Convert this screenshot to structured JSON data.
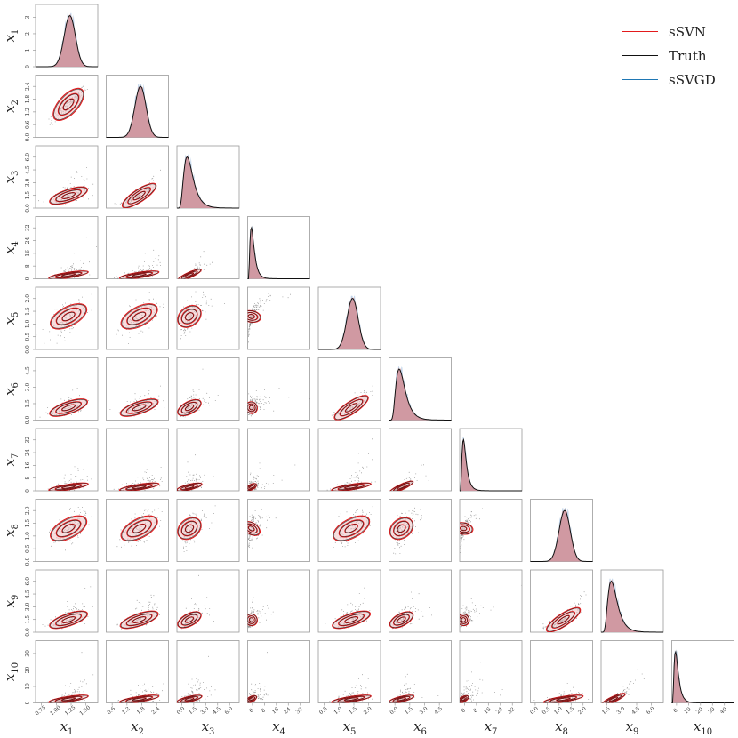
{
  "chart_data": {
    "type": "corner",
    "variables": [
      "x_1",
      "x_2",
      "x_3",
      "x_4",
      "x_5",
      "x_6",
      "x_7",
      "x_8",
      "x_9",
      "x_10"
    ],
    "axis_labels": [
      {
        "base": "x",
        "sub": "1"
      },
      {
        "base": "x",
        "sub": "2"
      },
      {
        "base": "x",
        "sub": "3"
      },
      {
        "base": "x",
        "sub": "4"
      },
      {
        "base": "x",
        "sub": "5"
      },
      {
        "base": "x",
        "sub": "6"
      },
      {
        "base": "x",
        "sub": "7"
      },
      {
        "base": "x",
        "sub": "8"
      },
      {
        "base": "x",
        "sub": "9"
      },
      {
        "base": "x",
        "sub": "10"
      }
    ],
    "ranges": [
      [
        0.55,
        1.55
      ],
      [
        0,
        2.4
      ],
      [
        0,
        6.0
      ],
      [
        0,
        40
      ],
      [
        0,
        2.7
      ],
      [
        0,
        6.0
      ],
      [
        0,
        33
      ],
      [
        0,
        2.7
      ],
      [
        0,
        6.0
      ],
      [
        0,
        40
      ]
    ],
    "y_ticks": [
      [
        "0",
        "1",
        "2",
        "3"
      ],
      [
        "0.0",
        "0.6",
        "1.2",
        "1.8",
        "2.4"
      ],
      [
        "0.0",
        "1.5",
        "3.0",
        "4.5",
        "6.0"
      ],
      [
        "0",
        "8",
        "16",
        "24",
        "32"
      ],
      [
        "0.0",
        "0.5",
        "1.0",
        "1.5",
        "2.0"
      ],
      [
        "0.0",
        "1.5",
        "3.0",
        "4.5"
      ],
      [
        "0",
        "8",
        "16",
        "24",
        "32"
      ],
      [
        "0.0",
        "0.5",
        "1.0",
        "1.5",
        "2.0"
      ],
      [
        "0.0",
        "1.5",
        "3.0",
        "4.5",
        "6.0"
      ],
      [
        "0",
        "10",
        "20",
        "30"
      ]
    ],
    "x_ticks": [
      [
        "0.75",
        "1.00",
        "1.25",
        "1.50"
      ],
      [
        "0.6",
        "1.2",
        "1.8",
        "2.4"
      ],
      [
        "0.0",
        "1.5",
        "3.0",
        "4.5",
        "6.0"
      ],
      [
        "0",
        "8",
        "16",
        "24",
        "32"
      ],
      [
        "0.5",
        "1.0",
        "1.5",
        "2.0"
      ],
      [
        "0.0",
        "1.5",
        "3.0",
        "4.5"
      ],
      [
        "0",
        "8",
        "16",
        "24",
        "32"
      ],
      [
        "0.0",
        "0.5",
        "1.0",
        "1.5",
        "2.0"
      ],
      [
        "1.5",
        "3.0",
        "4.5",
        "6.0"
      ],
      [
        "0",
        "10",
        "20",
        "30",
        "40"
      ]
    ],
    "diag_y_ticks": [
      "0",
      "1",
      "2",
      "3"
    ],
    "diag_peaks": [
      3.3,
      1.3,
      0.6,
      0.12,
      1.2,
      0.55,
      0.1,
      1.2,
      0.55,
      0.1
    ],
    "series": [
      {
        "name": "sSVN",
        "color": "#e31a1c"
      },
      {
        "name": "Truth",
        "color": "#000000"
      },
      {
        "name": "sSVGD",
        "color": "#1f77b4"
      }
    ],
    "legend_position": "top-right",
    "grid": false
  },
  "colors": {
    "ssvn_line": "#e31a1c",
    "ssvn_fill": "#d6868a",
    "truth_line": "#111111",
    "ssvgd_line": "#1f77b4",
    "ssvgd_fill": "#a9c4e2",
    "axis": "#9a9a9a",
    "points": "#333333",
    "contour_fill": "#f2c6c8"
  }
}
